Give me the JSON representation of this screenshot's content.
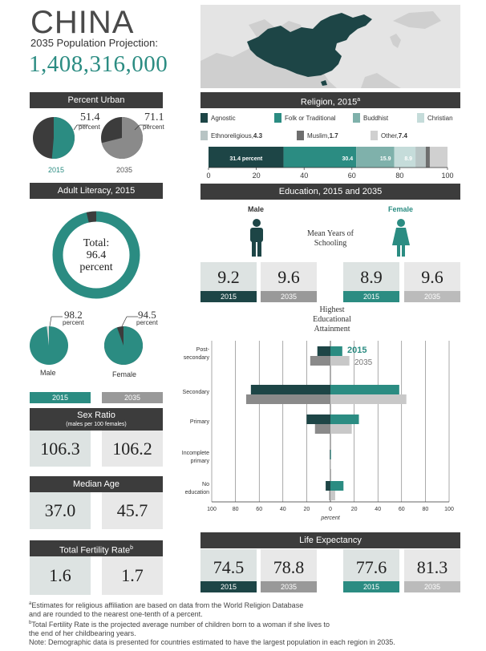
{
  "header": {
    "country": "CHINA",
    "projection_label": "2035 Population Projection:",
    "projection_value": "1,408,316,000"
  },
  "urban": {
    "title": "Percent Urban",
    "v2015": "51.4",
    "v2035": "71.1",
    "unit": "percent",
    "y2015": "2015",
    "y2035": "2035",
    "p2015": 51.4,
    "p2035": 71.1
  },
  "religion": {
    "title": "Religion, 2015",
    "title_sup": "a",
    "legend": [
      {
        "label": "Agnostic",
        "color": "#1d4546"
      },
      {
        "label": "Folk or Traditional",
        "color": "#2b8c82"
      },
      {
        "label": "Buddhist",
        "color": "#7fb1ab"
      },
      {
        "label": "Christian",
        "color": "#c5dcda"
      },
      {
        "label": "Ethnoreligious,",
        "value": "4.3",
        "color": "#b8c4c4"
      },
      {
        "label": "Muslim,",
        "value": "1.7",
        "color": "#6e6e6e"
      },
      {
        "label": "Other,",
        "value": "7.4",
        "color": "#d0d0d0"
      }
    ],
    "bar_labels": [
      "31.4 percent",
      "30.4",
      "15.9",
      "8.9"
    ],
    "axis_ticks": [
      "0",
      "20",
      "40",
      "60",
      "80",
      "100"
    ]
  },
  "literacy": {
    "title": "Adult Literacy, 2015",
    "total_label": "Total:",
    "total_value": "96.4",
    "total_unit": "percent",
    "male_value": "98.2",
    "female_value": "94.5",
    "unit": "percent",
    "male_label": "Male",
    "female_label": "Female",
    "total": 96.4,
    "male": 98.2,
    "female": 94.5
  },
  "education": {
    "title": "Education, 2015 and 2035",
    "male_label": "Male",
    "female_label": "Female",
    "mean_years_label_1": "Mean Years of",
    "mean_years_label_2": "Schooling",
    "male_2015": "9.2",
    "male_2035": "9.6",
    "female_2015": "8.9",
    "female_2035": "9.6",
    "y2015": "2015",
    "y2035": "2035",
    "attain_label_1": "Highest",
    "attain_label_2": "Educational",
    "attain_label_3": "Attainment",
    "legend_2015": "2015",
    "legend_2035": "2035",
    "categories": [
      "Post-secondary",
      "Secondary",
      "Primary",
      "Incomplete primary",
      "No education"
    ],
    "cat_lines": [
      [
        "Post-",
        "secondary"
      ],
      [
        "Secondary"
      ],
      [
        "Primary"
      ],
      [
        "Incomplete",
        "primary"
      ],
      [
        "No",
        "education"
      ]
    ],
    "axis_ticks": [
      "100",
      "80",
      "60",
      "40",
      "20",
      "0",
      "20",
      "40",
      "60",
      "80",
      "100"
    ],
    "axis_unit": "percent"
  },
  "chart_data": {
    "type": "bar",
    "title": "Highest Educational Attainment",
    "categories": [
      "Post-secondary",
      "Secondary",
      "Primary",
      "Incomplete primary",
      "No education"
    ],
    "xlabel": "percent",
    "xlim": [
      -100,
      100
    ],
    "series": [
      {
        "name": "Male 2015",
        "values": [
          11,
          67,
          20,
          0.5,
          4
        ]
      },
      {
        "name": "Male 2035",
        "values": [
          17,
          71,
          13,
          0.5,
          1
        ]
      },
      {
        "name": "Female 2015",
        "values": [
          10,
          58,
          24,
          0.5,
          11
        ]
      },
      {
        "name": "Female 2035",
        "values": [
          16,
          64,
          18,
          0.5,
          4
        ]
      }
    ]
  },
  "sex_ratio": {
    "y2015": "2015",
    "y2035": "2035",
    "title": "Sex Ratio",
    "subtitle": "(males per 100 females)",
    "v2015": "106.3",
    "v2035": "106.2"
  },
  "median_age": {
    "title": "Median Age",
    "v2015": "37.0",
    "v2035": "45.7"
  },
  "fertility": {
    "title": "Total Fertility Rate",
    "title_sup": "b",
    "v2015": "1.6",
    "v2035": "1.7"
  },
  "life": {
    "title": "Life Expectancy",
    "male_2015": "74.5",
    "male_2035": "78.8",
    "female_2015": "77.6",
    "female_2035": "81.3",
    "y2015": "2015",
    "y2035": "2035"
  },
  "footnotes": {
    "a1": "Estimates for religious affiliation are based on data from the World Religion Database",
    "a2": "and are rounded to the nearest one-tenth of a percent.",
    "b1": "Total Fertility Rate is the projected average number of children born to a woman if she lives to",
    "b2": "the end of her childbearing years.",
    "note": "Note: Demographic data is presented for countries estimated to have the largest population in each region in 2035.",
    "sup_a": "a",
    "sup_b": "b"
  }
}
